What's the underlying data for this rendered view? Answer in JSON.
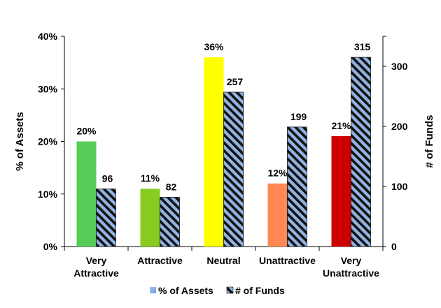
{
  "chart_data": {
    "type": "bar",
    "categories": [
      "Very Attractive",
      "Attractive",
      "Neutral",
      "Unattractive",
      "Very Unattractive"
    ],
    "category_lines": [
      [
        "Very",
        "Attractive"
      ],
      [
        "Attractive"
      ],
      [
        "Neutral"
      ],
      [
        "Unattractive"
      ],
      [
        "Very",
        "Unattractive"
      ]
    ],
    "series": [
      {
        "name": "% of Assets",
        "axis": "left",
        "values": [
          20,
          11,
          36,
          12,
          21
        ],
        "labels": [
          "20%",
          "11%",
          "36%",
          "12%",
          "21%"
        ],
        "colors": [
          "#55cc55",
          "#88cc22",
          "#ffff00",
          "#ff8855",
          "#cc0000"
        ]
      },
      {
        "name": "# of Funds",
        "axis": "right",
        "values": [
          96,
          82,
          257,
          199,
          315
        ],
        "labels": [
          "96",
          "82",
          "257",
          "199",
          "315"
        ],
        "pattern": "diagonal-stripe",
        "colors": [
          "#8fb4e3",
          "#111111"
        ]
      }
    ],
    "ylabel": "% of Assets",
    "y2label": "# of Funds",
    "ylim": [
      0,
      40
    ],
    "y2lim": [
      0,
      350
    ],
    "yticks": [
      "0%",
      "10%",
      "20%",
      "30%",
      "40%"
    ],
    "y2ticks": [
      "0",
      "100",
      "200",
      "300"
    ],
    "legend": {
      "position": "bottom",
      "items": [
        "% of Assets",
        "# of Funds"
      ]
    },
    "grid": false
  }
}
